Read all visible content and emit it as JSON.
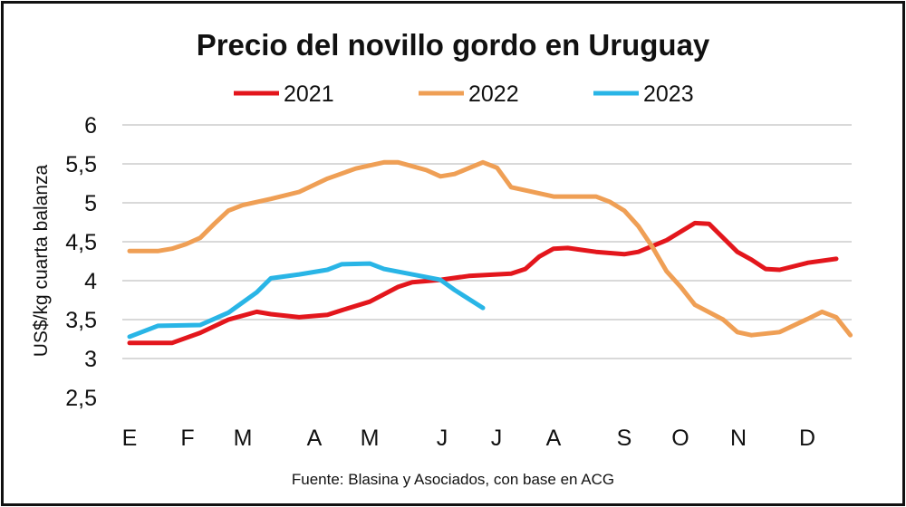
{
  "chart_data": {
    "type": "line",
    "title": "Precio del novillo gordo en Uruguay",
    "ylabel": "US$/kg cuarta balanza",
    "xlabel": "",
    "ylim": [
      2.5,
      6
    ],
    "yticks": [
      "2,5",
      "3",
      "3,5",
      "4",
      "4,5",
      "5",
      "5,5",
      "6"
    ],
    "ytick_values": [
      2.5,
      3,
      3.5,
      4,
      4.5,
      5,
      5.5,
      6
    ],
    "x_unit": "week of year",
    "xlim": [
      1,
      52
    ],
    "month_labels": [
      "E",
      "F",
      "M",
      "A",
      "M",
      "J",
      "J",
      "A",
      "S",
      "O",
      "N",
      "D"
    ],
    "grid": "horizontal",
    "legend": "top",
    "source": "Fuente: Blasina y Asociados, con base en ACG",
    "series": [
      {
        "name": "2021",
        "color": "#e3161c",
        "x": [
          1,
          4,
          6,
          8,
          10,
          11,
          13,
          15,
          16,
          18,
          20,
          21,
          23,
          25,
          28,
          29,
          30,
          31,
          32,
          34,
          36,
          37,
          39,
          41,
          42,
          44,
          45,
          46,
          47,
          49,
          51
        ],
        "y": [
          3.2,
          3.2,
          3.33,
          3.5,
          3.6,
          3.57,
          3.53,
          3.56,
          3.62,
          3.73,
          3.92,
          3.98,
          4.01,
          4.06,
          4.09,
          4.15,
          4.31,
          4.41,
          4.42,
          4.37,
          4.34,
          4.37,
          4.52,
          4.74,
          4.73,
          4.37,
          4.27,
          4.15,
          4.14,
          4.23,
          4.28
        ]
      },
      {
        "name": "2022",
        "color": "#ef9f55",
        "x": [
          1,
          3,
          4,
          5,
          6,
          7,
          8,
          9,
          11,
          13,
          15,
          17,
          19,
          20,
          22,
          23,
          24,
          26,
          27,
          28,
          29,
          31,
          34,
          35,
          36,
          37,
          38,
          39,
          40,
          41,
          43,
          44,
          45,
          47,
          49,
          50,
          51,
          52
        ],
        "y": [
          4.38,
          4.38,
          4.41,
          4.47,
          4.55,
          4.73,
          4.9,
          4.97,
          5.05,
          5.14,
          5.31,
          5.44,
          5.52,
          5.52,
          5.42,
          5.34,
          5.37,
          5.52,
          5.45,
          5.2,
          5.16,
          5.08,
          5.08,
          5.01,
          4.9,
          4.7,
          4.43,
          4.12,
          3.92,
          3.69,
          3.5,
          3.34,
          3.3,
          3.34,
          3.51,
          3.6,
          3.53,
          3.3
        ]
      },
      {
        "name": "2023",
        "color": "#29b5e6",
        "x": [
          1,
          3,
          6,
          8,
          10,
          11,
          13,
          15,
          16,
          18,
          19,
          21,
          23,
          24,
          26
        ],
        "y": [
          3.28,
          3.42,
          3.43,
          3.59,
          3.85,
          4.03,
          4.08,
          4.14,
          4.21,
          4.22,
          4.15,
          4.08,
          4.01,
          3.88,
          3.65
        ]
      }
    ]
  }
}
